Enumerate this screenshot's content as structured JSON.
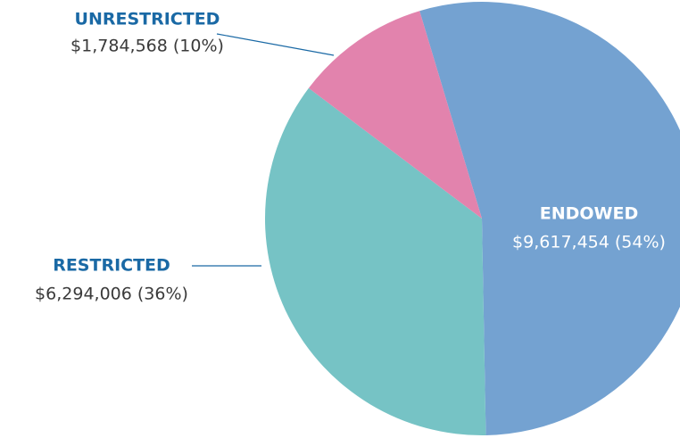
{
  "chart_data": {
    "type": "pie",
    "categories": [
      "ENDOWED",
      "RESTRICTED",
      "UNRESTRICTED"
    ],
    "values": [
      9617454,
      6294006,
      1784568
    ],
    "value_labels": [
      "$9,617,454 (54%)",
      "$6,294,006 (36%)",
      "$1,784,568 (10%)"
    ],
    "colors": [
      "#74a2d1",
      "#76c3c5",
      "#e283ad"
    ]
  }
}
